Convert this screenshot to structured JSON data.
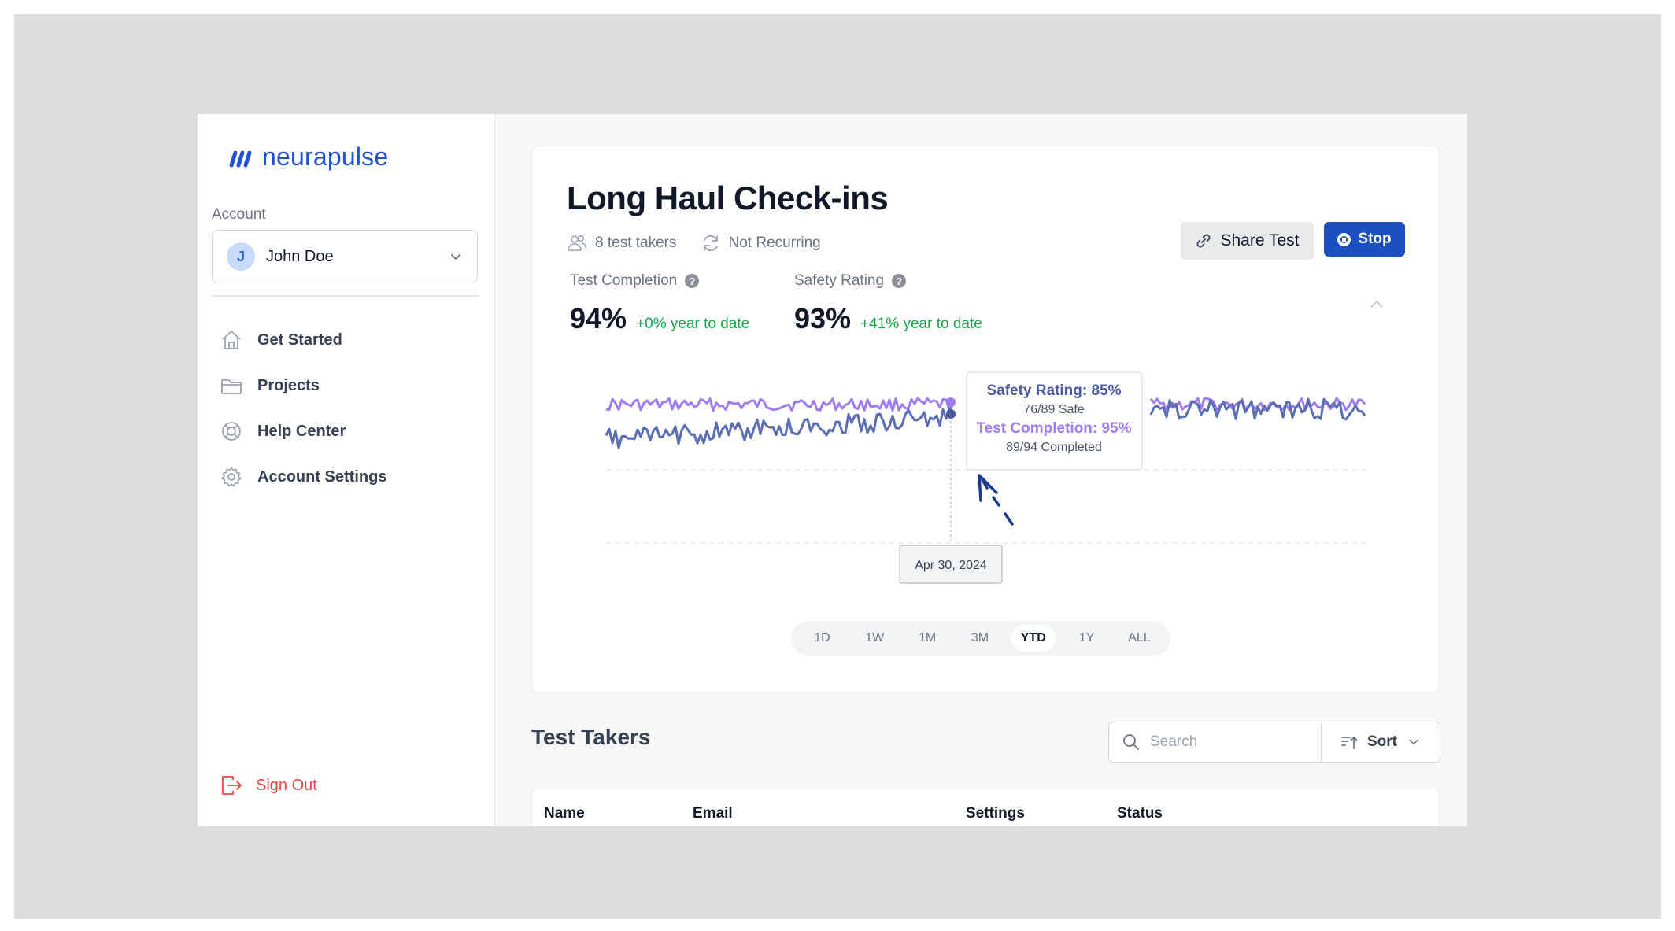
{
  "brand": {
    "name": "neurapulse",
    "color": "#1d4fd8"
  },
  "sidebar": {
    "account_label": "Account",
    "account": {
      "initial": "J",
      "name": "John Doe"
    },
    "items": [
      {
        "label": "Get Started",
        "icon": "home-icon"
      },
      {
        "label": "Projects",
        "icon": "folder-icon"
      },
      {
        "label": "Help Center",
        "icon": "lifebuoy-icon"
      },
      {
        "label": "Account Settings",
        "icon": "gear-icon"
      }
    ],
    "sign_out": "Sign Out"
  },
  "test": {
    "title": "Long Haul Check-ins",
    "takers": "8 test takers",
    "recurrence": "Not Recurring",
    "share_label": "Share Test",
    "stop_label": "Stop"
  },
  "stats": {
    "completion": {
      "label": "Test Completion",
      "value": "94%",
      "delta": "+0% year to date"
    },
    "safety": {
      "label": "Safety Rating",
      "value": "93%",
      "delta": "+41% year to date"
    }
  },
  "chart_data": {
    "type": "line",
    "series": [
      {
        "key": "completion",
        "color": "#a07cf0"
      },
      {
        "key": "safety",
        "color": "#5b6db3"
      }
    ],
    "ylim": [
      0,
      100
    ],
    "grid": true,
    "tooltip": {
      "safety_line": "Safety Rating: 85%",
      "safety_detail": "76/89 Safe",
      "completion_line": "Test Completion: 95%",
      "completion_detail": "89/94 Completed",
      "date": "Apr 30, 2024"
    }
  },
  "ranges": [
    {
      "label": "1D",
      "active": false
    },
    {
      "label": "1W",
      "active": false
    },
    {
      "label": "1M",
      "active": false
    },
    {
      "label": "3M",
      "active": false
    },
    {
      "label": "YTD",
      "active": true
    },
    {
      "label": "1Y",
      "active": false
    },
    {
      "label": "ALL",
      "active": false
    }
  ],
  "takers_section": {
    "title": "Test Takers",
    "search_placeholder": "Search",
    "sort_label": "Sort",
    "columns": [
      "Name",
      "Email",
      "Settings",
      "Status"
    ]
  }
}
